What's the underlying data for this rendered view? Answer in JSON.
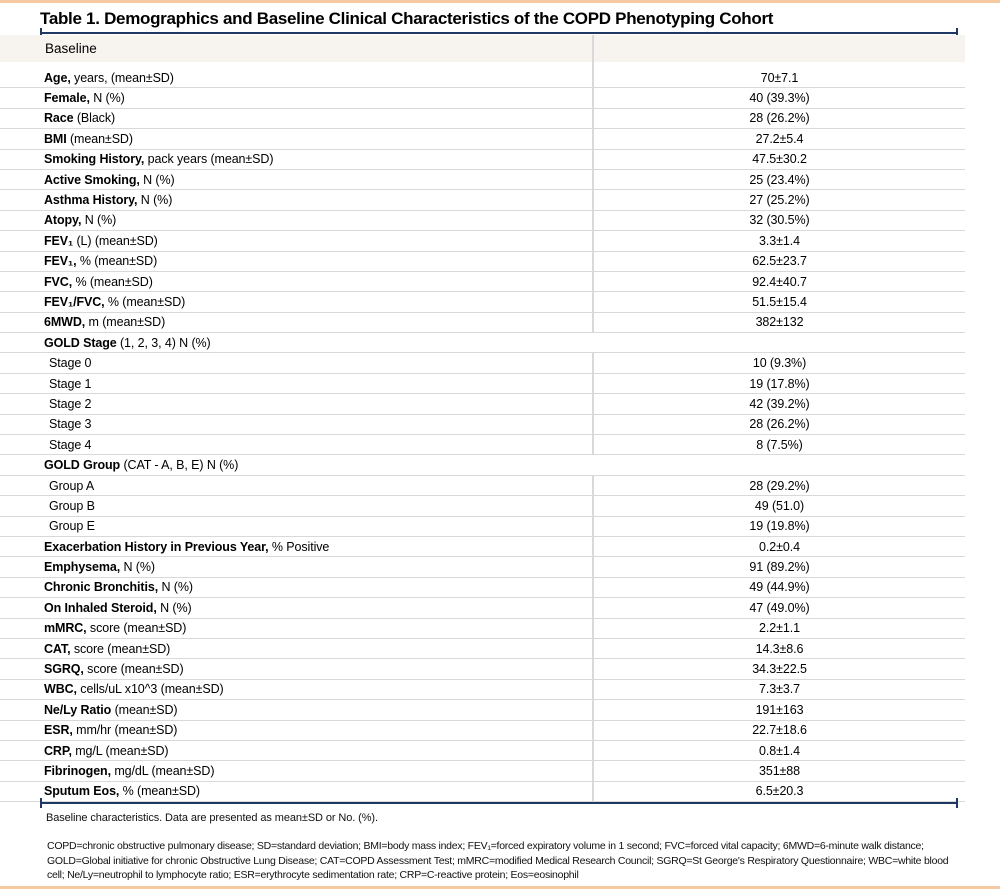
{
  "title": "Table 1. Demographics and Baseline Clinical Characteristics of the COPD Phenotyping Cohort",
  "colors": {
    "navy": "#1f3864",
    "peach": "#f6c9a3",
    "header_bg": "#f7f3ef",
    "row_border": "#d9d9d9"
  },
  "table": {
    "header": {
      "label": "Baseline"
    },
    "rows": [
      {
        "type": "d",
        "bold": "Age,",
        "rest": " years, (mean±SD)",
        "value": "70±7.1"
      },
      {
        "type": "d",
        "bold": "Female,",
        "rest": " N (%)",
        "value": "40 (39.3%)"
      },
      {
        "type": "d",
        "bold": "Race",
        "rest": " (Black)",
        "value": "28 (26.2%)"
      },
      {
        "type": "d",
        "bold": "BMI",
        "rest": " (mean±SD)",
        "value": "27.2±5.4"
      },
      {
        "type": "d",
        "bold": "Smoking History,",
        "rest": " pack years (mean±SD)",
        "value": "47.5±30.2"
      },
      {
        "type": "d",
        "bold": "Active Smoking,",
        "rest": " N (%)",
        "value": "25 (23.4%)"
      },
      {
        "type": "d",
        "bold": "Asthma History,",
        "rest": " N (%)",
        "value": "27 (25.2%)"
      },
      {
        "type": "d",
        "bold": "Atopy,",
        "rest": " N (%)",
        "value": "32 (30.5%)"
      },
      {
        "type": "d",
        "bold": "FEV₁",
        "rest": " (L) (mean±SD)",
        "value": "3.3±1.4"
      },
      {
        "type": "d",
        "bold": "FEV₁,",
        "rest": " % (mean±SD)",
        "value": "62.5±23.7"
      },
      {
        "type": "d",
        "bold": "FVC,",
        "rest": " % (mean±SD)",
        "value": "92.4±40.7"
      },
      {
        "type": "d",
        "bold": "FEV₁/FVC,",
        "rest": " % (mean±SD)",
        "value": "51.5±15.4"
      },
      {
        "type": "d",
        "bold": "6MWD,",
        "rest": " m (mean±SD)",
        "value": "382±132"
      },
      {
        "type": "section",
        "bold": "GOLD Stage",
        "rest": " (1, 2, 3, 4) N (%)",
        "value": ""
      },
      {
        "type": "sub",
        "bold": "",
        "rest": "Stage 0",
        "value": "10 (9.3%)"
      },
      {
        "type": "sub",
        "bold": "",
        "rest": "Stage 1",
        "value": "19 (17.8%)"
      },
      {
        "type": "sub",
        "bold": "",
        "rest": "Stage 2",
        "value": "42 (39.2%)"
      },
      {
        "type": "sub",
        "bold": "",
        "rest": "Stage 3",
        "value": "28 (26.2%)"
      },
      {
        "type": "sub",
        "bold": "",
        "rest": "Stage 4",
        "value": "8 (7.5%)"
      },
      {
        "type": "section",
        "bold": "GOLD Group",
        "rest": " (CAT - A, B, E) N (%)",
        "value": ""
      },
      {
        "type": "sub",
        "bold": "",
        "rest": "Group A",
        "value": "28 (29.2%)"
      },
      {
        "type": "sub",
        "bold": "",
        "rest": "Group B",
        "value": "49 (51.0)"
      },
      {
        "type": "sub",
        "bold": "",
        "rest": "Group E",
        "value": "19 (19.8%)"
      },
      {
        "type": "d",
        "bold": "Exacerbation History in Previous Year,",
        "rest": " % Positive",
        "value": "0.2±0.4"
      },
      {
        "type": "d",
        "bold": "Emphysema,",
        "rest": " N (%)",
        "value": "91 (89.2%)"
      },
      {
        "type": "d",
        "bold": "Chronic Bronchitis,",
        "rest": " N (%)",
        "value": "49 (44.9%)"
      },
      {
        "type": "d",
        "bold": "On Inhaled Steroid,",
        "rest": " N (%)",
        "value": "47 (49.0%)"
      },
      {
        "type": "d",
        "bold": "mMRC,",
        "rest": " score (mean±SD)",
        "value": "2.2±1.1"
      },
      {
        "type": "d",
        "bold": "CAT,",
        "rest": " score (mean±SD)",
        "value": "14.3±8.6"
      },
      {
        "type": "d",
        "bold": "SGRQ,",
        "rest": " score (mean±SD)",
        "value": "34.3±22.5"
      },
      {
        "type": "d",
        "bold": "WBC,",
        "rest": " cells/uL x10^3 (mean±SD)",
        "value": "7.3±3.7"
      },
      {
        "type": "d",
        "bold": "Ne/Ly Ratio",
        "rest": " (mean±SD)",
        "value": "191±163"
      },
      {
        "type": "d",
        "bold": "ESR,",
        "rest": " mm/hr (mean±SD)",
        "value": "22.7±18.6"
      },
      {
        "type": "d",
        "bold": "CRP,",
        "rest": " mg/L (mean±SD)",
        "value": "0.8±1.4"
      },
      {
        "type": "d",
        "bold": "Fibrinogen,",
        "rest": " mg/dL (mean±SD)",
        "value": "351±88"
      },
      {
        "type": "d",
        "bold": "Sputum Eos,",
        "rest": " % (mean±SD)",
        "value": "6.5±20.3"
      }
    ]
  },
  "footnote": "Baseline characteristics. Data are presented as mean±SD or No. (%).",
  "abbreviations": "COPD=chronic obstructive pulmonary disease; SD=standard deviation; BMI=body mass index; FEV₁=forced expiratory volume in 1 second; FVC=forced vital capacity; 6MWD=6-minute walk distance; GOLD=Global initiative for chronic Obstructive Lung Disease; CAT=COPD Assessment Test; mMRC=modified Medical Research Council; SGRQ=St George's Respiratory Questionnaire; WBC=white blood cell; Ne/Ly=neutrophil to lymphocyte ratio; ESR=erythrocyte sedimentation rate; CRP=C-reactive protein; Eos=eosinophil"
}
